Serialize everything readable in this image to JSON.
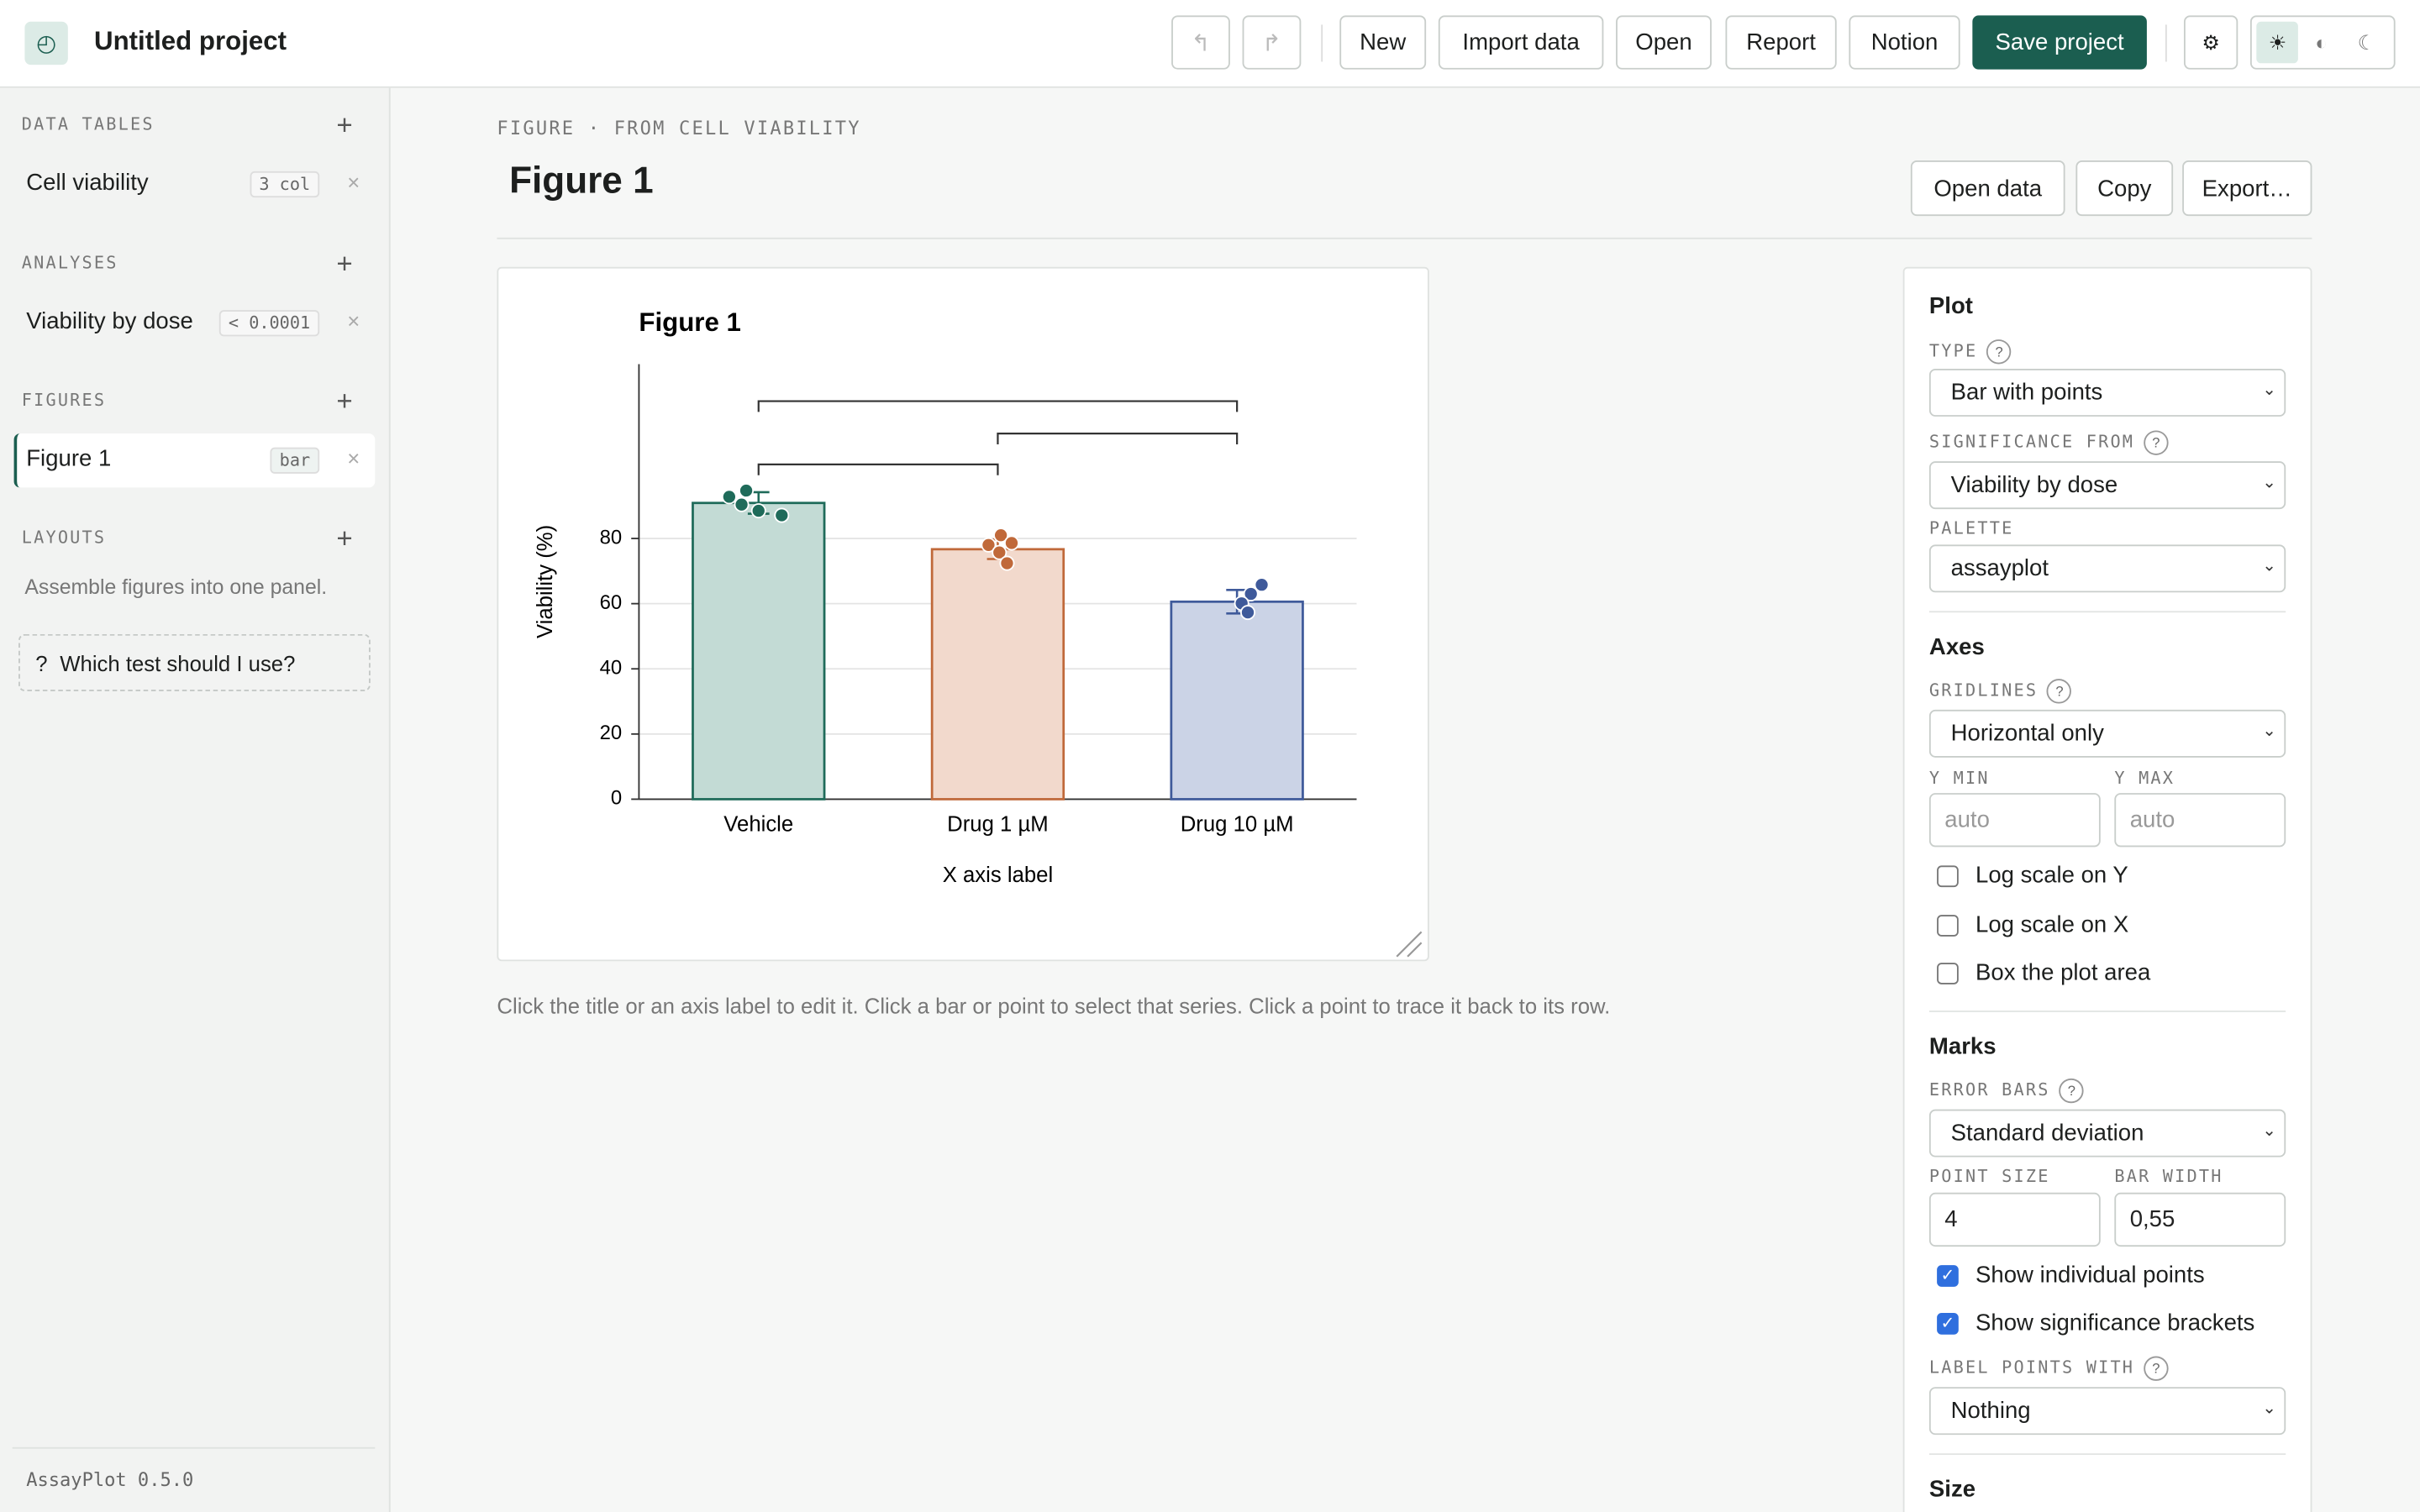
{
  "header": {
    "title": "Untitled project",
    "buttons": [
      "New",
      "Import data",
      "Open",
      "Report",
      "Notion"
    ],
    "save": "Save project"
  },
  "sidebar": {
    "sections": [
      {
        "heading": "DATA TABLES",
        "items": [
          {
            "label": "Cell viability",
            "badge": "3 col"
          }
        ]
      },
      {
        "heading": "ANALYSES",
        "items": [
          {
            "label": "Viability by dose",
            "badge": "< 0.0001"
          }
        ]
      },
      {
        "heading": "FIGURES",
        "items": [
          {
            "label": "Figure 1",
            "badge": "bar",
            "active": true
          }
        ]
      },
      {
        "heading": "LAYOUTS",
        "note": "Assemble figures into one panel."
      }
    ],
    "help": "Which test should I use?",
    "version": "AssayPlot 0.5.0"
  },
  "figure": {
    "eyebrow": "FIGURE · FROM CELL VIABILITY",
    "title": "Figure 1",
    "actions": [
      "Open data",
      "Copy",
      "Export…"
    ],
    "hint": "Click the title or an axis label to edit it. Click a bar or point to select that series. Click a point to trace it back to its row."
  },
  "chart_data": {
    "type": "bar",
    "title": "Figure 1",
    "xlabel": "X axis label",
    "ylabel": "Viability (%)",
    "categories": [
      "Vehicle",
      "Drug 1 µM",
      "Drug 10 µM"
    ],
    "values": [
      90.9,
      76.7,
      60.6
    ],
    "errors": [
      3.3,
      3.0,
      3.6
    ],
    "points": [
      [
        92.8,
        94.7,
        90.4,
        88.5,
        87.1
      ],
      [
        81,
        78,
        78.6,
        75.7,
        72.4
      ],
      [
        65.8,
        63,
        60.1,
        57.3
      ]
    ],
    "colors": [
      "#1f6b5a",
      "#c0693a",
      "#3f5a9a"
    ],
    "fills": [
      "#c3dbd5",
      "#f2d9cc",
      "#cbd3e6"
    ],
    "ylim": [
      0,
      133.5
    ],
    "yticks": [
      0,
      20,
      40,
      60,
      80
    ],
    "grid": true
  },
  "panel": {
    "plot": {
      "heading": "Plot",
      "fields": [
        {
          "label": "TYPE",
          "value": "Bar with points",
          "help": true
        },
        {
          "label": "SIGNIFICANCE FROM",
          "value": "Viability by dose",
          "help": true
        },
        {
          "label": "PALETTE",
          "value": "assayplot"
        }
      ]
    },
    "axes": {
      "heading": "Axes",
      "gridlines": {
        "label": "GRIDLINES",
        "value": "Horizontal only"
      },
      "ymin": {
        "label": "Y MIN",
        "placeholder": "auto"
      },
      "ymax": {
        "label": "Y MAX",
        "placeholder": "auto"
      },
      "checks": [
        {
          "label": "Log scale on Y",
          "checked": false
        },
        {
          "label": "Log scale on X",
          "checked": false
        },
        {
          "label": "Box the plot area",
          "checked": false
        }
      ]
    },
    "marks": {
      "heading": "Marks",
      "error_bars": {
        "label": "ERROR BARS",
        "value": "Standard deviation"
      },
      "point_size": {
        "label": "POINT SIZE",
        "value": "4"
      },
      "bar_width": {
        "label": "BAR WIDTH",
        "value": "0,55"
      },
      "checks": [
        {
          "label": "Show individual points",
          "checked": true
        },
        {
          "label": "Show significance brackets",
          "checked": true
        }
      ],
      "label_points": {
        "label": "LABEL POINTS WITH",
        "value": "Nothing"
      }
    },
    "size": {
      "heading": "Size"
    }
  }
}
